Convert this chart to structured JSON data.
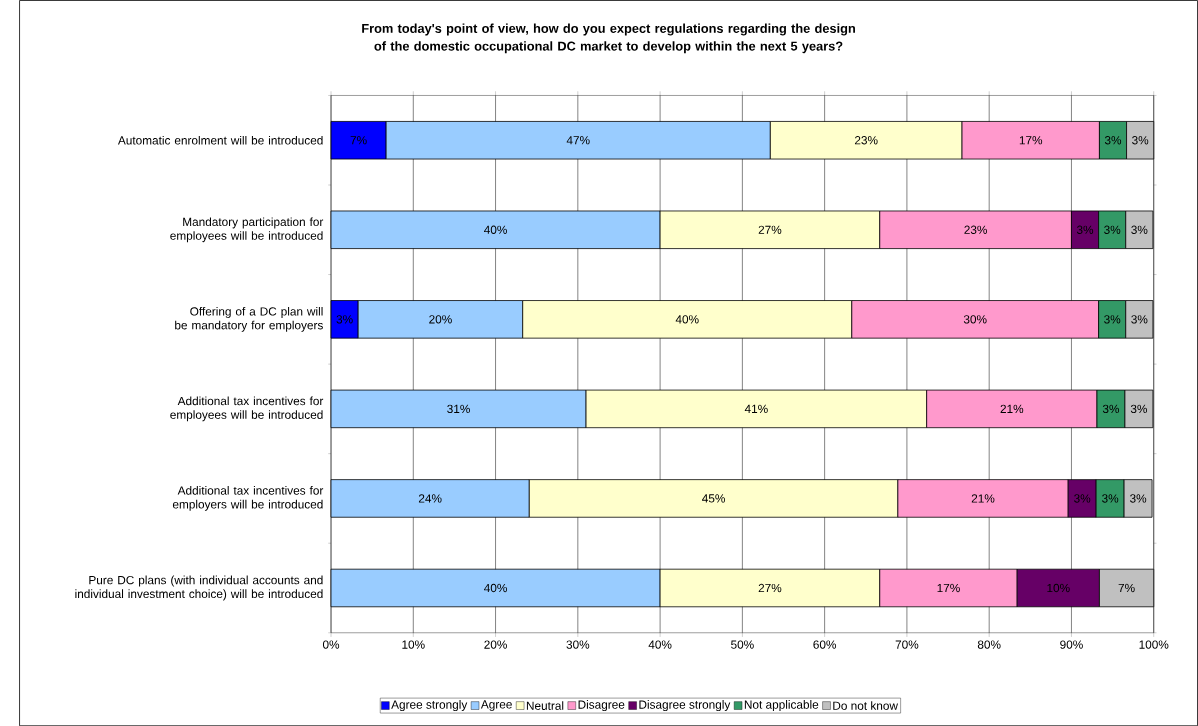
{
  "chart_data": {
    "type": "bar",
    "orientation": "horizontal",
    "stacked": true,
    "title": "From today's point of view, how do you expect regulations regarding the design of the domestic occupational DC market to develop within the next 5 years?",
    "categories": [
      "Automatic enrolment will be introduced",
      "Mandatory participation for employees will be introduced",
      "Offering of a DC plan will be mandatory for employers",
      "Additional tax incentives for employees will be introduced",
      "Additional tax incentives for employers will be introduced",
      "Pure DC plans (with individual accounts and individual investment choice) will be introduced"
    ],
    "series": [
      {
        "name": "Agree strongly",
        "color": "#0000ff",
        "values": [
          6.7,
          null,
          3.3,
          null,
          null,
          null
        ],
        "value_labels": [
          "7%",
          null,
          "3%",
          null,
          null,
          null
        ]
      },
      {
        "name": "Agree",
        "color": "#99ccff",
        "values": [
          46.7,
          40,
          20,
          31,
          24.1,
          40
        ],
        "value_labels": [
          "47%",
          "40%",
          "20%",
          "31%",
          "24%",
          "40%"
        ]
      },
      {
        "name": "Neutral",
        "color": "#ffffcc",
        "values": [
          23.3,
          26.7,
          40,
          41.4,
          44.8,
          26.7
        ],
        "value_labels": [
          "23%",
          "27%",
          "40%",
          "41%",
          "45%",
          "27%"
        ]
      },
      {
        "name": "Disagree",
        "color": "#ff99cc",
        "values": [
          16.7,
          23.3,
          30,
          20.7,
          20.7,
          16.7
        ],
        "value_labels": [
          "17%",
          "23%",
          "30%",
          "21%",
          "21%",
          "17%"
        ]
      },
      {
        "name": "Disagree strongly",
        "color": "#660066",
        "values": [
          null,
          3.3,
          null,
          null,
          3.4,
          10
        ],
        "value_labels": [
          null,
          "3%",
          null,
          null,
          "3%",
          "10%"
        ]
      },
      {
        "name": "Not applicable",
        "color": "#339966",
        "values": [
          3.3,
          3.3,
          3.3,
          3.4,
          3.4,
          null
        ],
        "value_labels": [
          "3%",
          "3%",
          "3%",
          "3%",
          "3%",
          null
        ]
      },
      {
        "name": "Do not know",
        "color": "#c0c0c0",
        "values": [
          3.3,
          3.3,
          3.3,
          3.4,
          3.4,
          6.6
        ],
        "value_labels": [
          "3%",
          "3%",
          "3%",
          "3%",
          "3%",
          "7%"
        ]
      }
    ],
    "xlim": [
      0,
      100
    ],
    "xticks": [
      {
        "value": 0,
        "label": "0%"
      },
      {
        "value": 10,
        "label": "10%"
      },
      {
        "value": 20,
        "label": "20%"
      },
      {
        "value": 30,
        "label": "30%"
      },
      {
        "value": 40,
        "label": "40%"
      },
      {
        "value": 50,
        "label": "50%"
      },
      {
        "value": 60,
        "label": "60%"
      },
      {
        "value": 70,
        "label": "70%"
      },
      {
        "value": 80,
        "label": "80%"
      },
      {
        "value": 90,
        "label": "90%"
      },
      {
        "value": 100,
        "label": "100%"
      }
    ],
    "grid": "x",
    "legend": "bottom"
  }
}
